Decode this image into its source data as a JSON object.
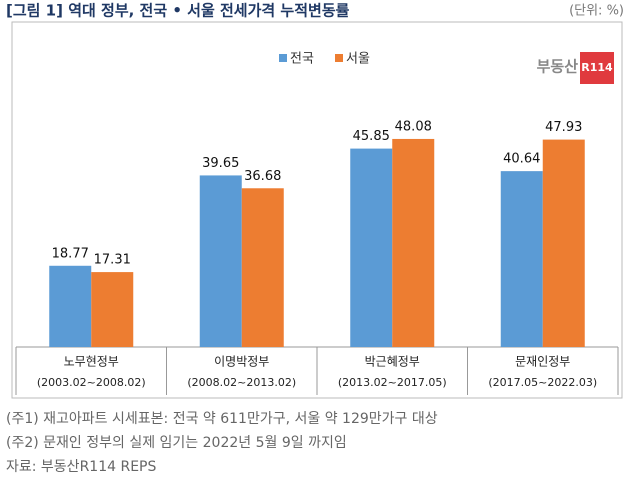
{
  "chart_data": {
    "type": "bar",
    "title": "[그림 1] 역대 정부, 전국 • 서울 전세가격 누적변동률",
    "unit_note": "(단위: %)",
    "logo": {
      "text": "부동산",
      "badge": "R114"
    },
    "categories": [
      "노무현정부",
      "이명박정부",
      "박근혜정부",
      "문재인정부"
    ],
    "category_periods": [
      "(2003.02~2008.02)",
      "(2008.02~2013.02)",
      "(2013.02~2017.05)",
      "(2017.05~2022.03)"
    ],
    "series": [
      {
        "name": "전국",
        "color": "#5b9bd5",
        "values": [
          18.77,
          39.65,
          45.85,
          40.64
        ]
      },
      {
        "name": "서울",
        "color": "#ed7d31",
        "values": [
          17.31,
          36.68,
          48.08,
          47.93
        ]
      }
    ],
    "ylim": [
      0,
      55
    ],
    "notes": [
      "(주1) 재고아파트 시세표본: 전국 약 611만가구, 서울 약 129만가구 대상",
      "(주2) 문재인 정부의 실제 임기는 2022년 5월 9일 까지임",
      "자료: 부동산R114 REPS"
    ]
  }
}
